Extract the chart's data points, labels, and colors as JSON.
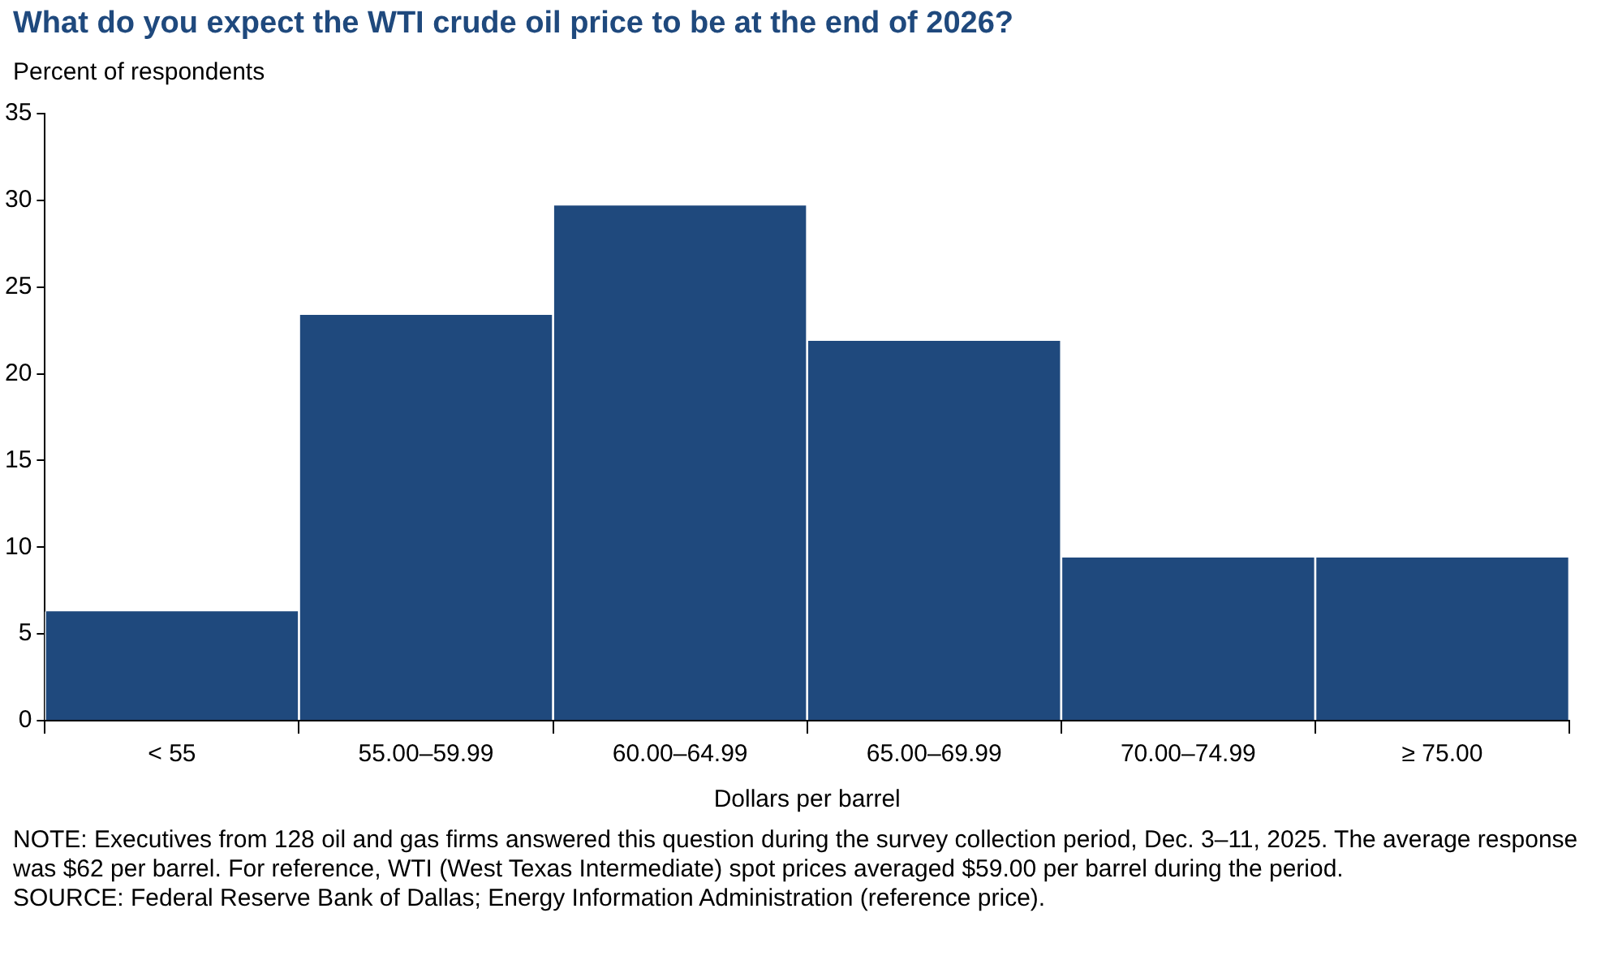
{
  "chart_data": {
    "type": "bar",
    "title": "What do you expect the WTI crude oil price to be at the end of 2026?",
    "ylabel": "Percent of respondents",
    "xlabel": "Dollars per barrel",
    "categories": [
      "< 55",
      "55.00–59.99",
      "60.00–64.99",
      "65.00–69.99",
      "70.00–74.99",
      "≥ 75.00"
    ],
    "values": [
      6.3,
      23.4,
      29.7,
      21.9,
      9.4,
      9.4
    ],
    "color": "#1f497d",
    "ylim": [
      0,
      35
    ],
    "yticks": [
      0,
      5,
      10,
      15,
      20,
      25,
      30,
      35
    ],
    "grid": false,
    "legend": false,
    "annotations": [
      "NOTE: Executives from 128 oil and gas firms answered this question during the survey collection period, Dec. 3–11, 2025. The average response was $62 per barrel. For reference, WTI (West Texas Intermediate) spot prices averaged $59.00 per barrel during the period.",
      "SOURCE: Federal Reserve Bank of Dallas; Energy Information Administration (reference price)."
    ]
  }
}
